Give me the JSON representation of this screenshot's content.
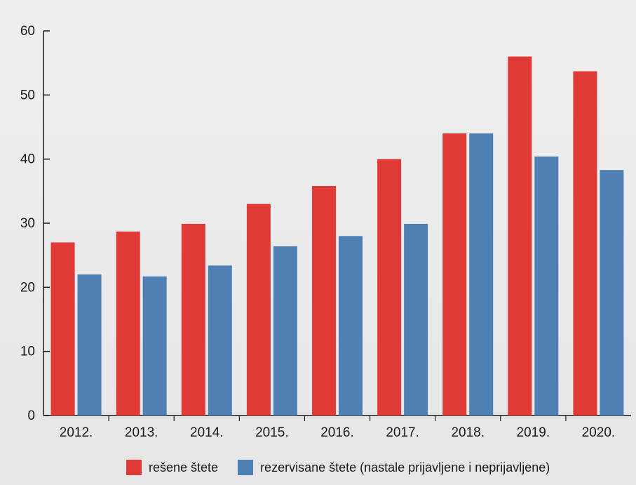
{
  "chart_data": {
    "type": "bar",
    "categories": [
      "2012.",
      "2013.",
      "2014.",
      "2015.",
      "2016.",
      "2017.",
      "2018.",
      "2019.",
      "2020."
    ],
    "series": [
      {
        "name": "rešene štete",
        "color": "#e03a36",
        "values": [
          27,
          28.7,
          29.9,
          33,
          35.8,
          40,
          44,
          56,
          53.7
        ]
      },
      {
        "name": "rezervisane štete (nastale prijavljene i neprijavljene)",
        "color": "#4f80b5",
        "values": [
          22,
          21.7,
          23.4,
          26.4,
          28,
          29.9,
          44,
          40.4,
          38.3
        ]
      }
    ],
    "y_ticks": [
      0,
      10,
      20,
      30,
      40,
      50,
      60
    ],
    "ylim": [
      0,
      60
    ],
    "title": "",
    "xlabel": "",
    "ylabel": "",
    "grid": false,
    "legend_position": "bottom"
  }
}
